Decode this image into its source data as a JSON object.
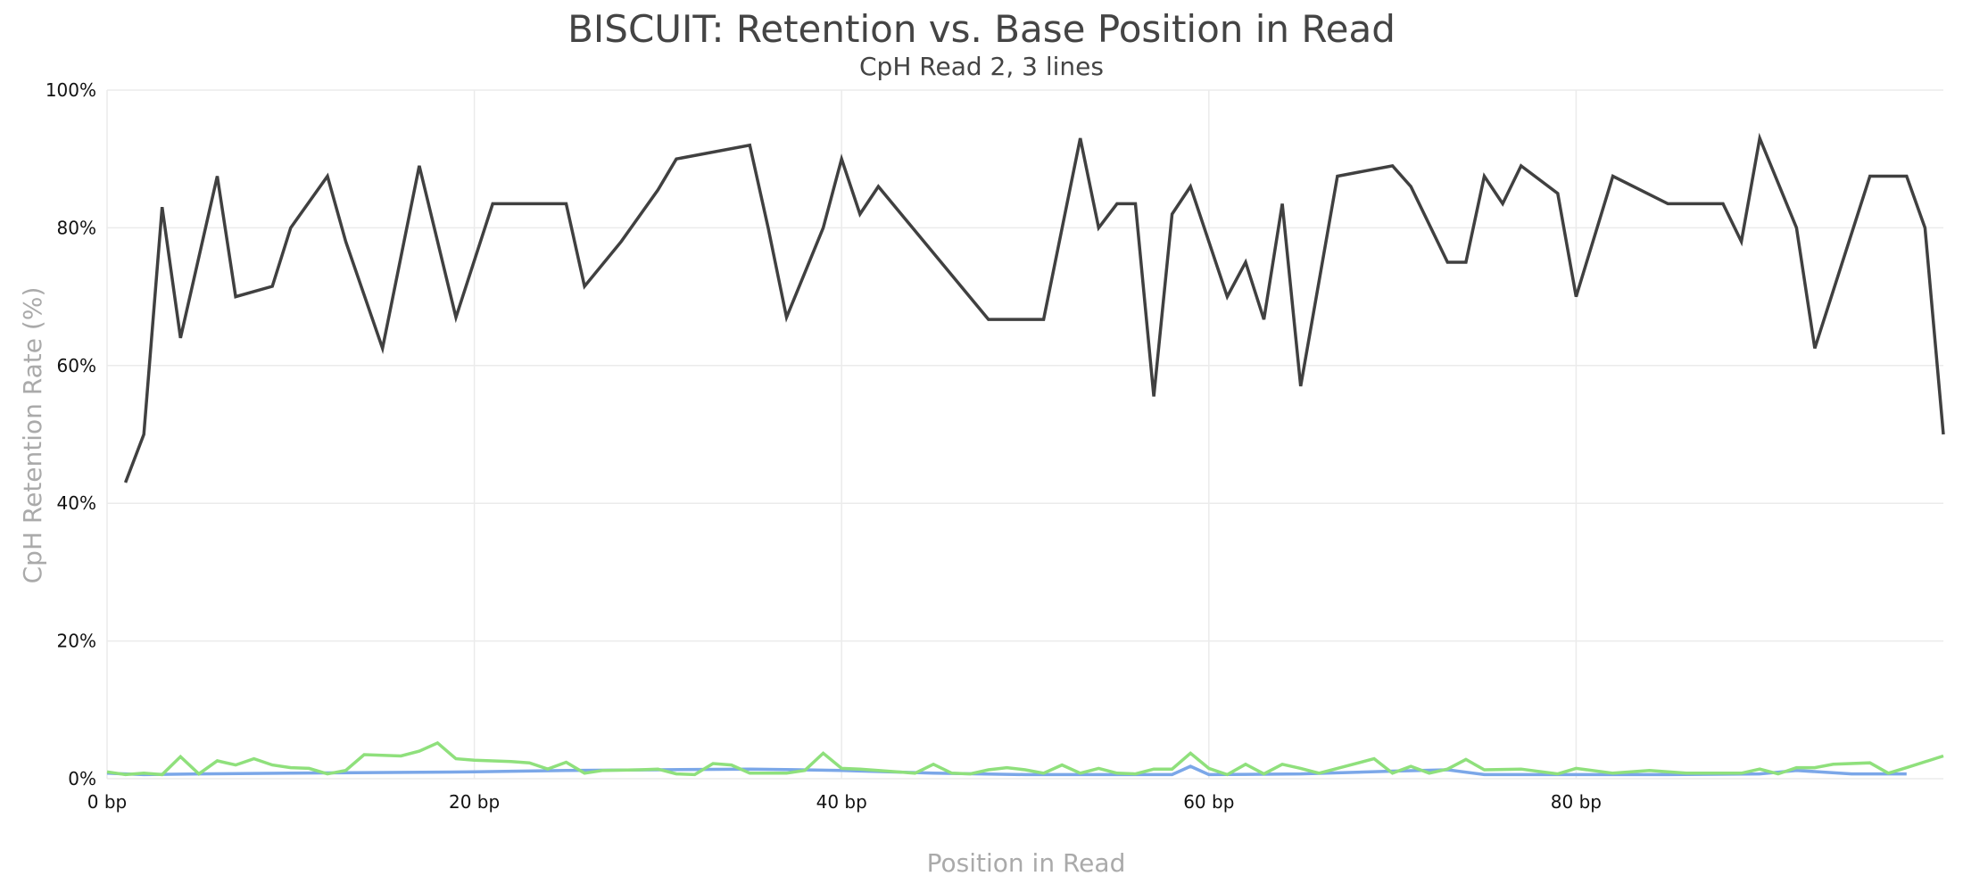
{
  "chart_data": {
    "type": "line",
    "title": "BISCUIT: Retention vs. Base Position in Read",
    "subtitle": "CpH Read 2, 3 lines",
    "xlabel": "Position in Read",
    "ylabel": "CpH Retention Rate (%)",
    "xlim": [
      0,
      100
    ],
    "ylim": [
      0,
      100
    ],
    "x_ticks": [
      {
        "value": 0,
        "label": "0 bp"
      },
      {
        "value": 20,
        "label": "20 bp"
      },
      {
        "value": 40,
        "label": "40 bp"
      },
      {
        "value": 60,
        "label": "60 bp"
      },
      {
        "value": 80,
        "label": "80 bp"
      }
    ],
    "y_ticks": [
      {
        "value": 0,
        "label": "0%"
      },
      {
        "value": 20,
        "label": "20%"
      },
      {
        "value": 40,
        "label": "40%"
      },
      {
        "value": 60,
        "label": "60%"
      },
      {
        "value": 80,
        "label": "80%"
      },
      {
        "value": 100,
        "label": "100%"
      }
    ],
    "grid": true,
    "legend": "none",
    "series": [
      {
        "color": "#404040",
        "points": [
          [
            1,
            43
          ],
          [
            2,
            50
          ],
          [
            3,
            83
          ],
          [
            4,
            64
          ],
          [
            6,
            87.5
          ],
          [
            7,
            70
          ],
          [
            9,
            71.5
          ],
          [
            10,
            80
          ],
          [
            12,
            87.5
          ],
          [
            13,
            78
          ],
          [
            15,
            62.5
          ],
          [
            17,
            89
          ],
          [
            19,
            67
          ],
          [
            21,
            83.5
          ],
          [
            25,
            83.5
          ],
          [
            26,
            71.5
          ],
          [
            28,
            78
          ],
          [
            30,
            85.5
          ],
          [
            31,
            90
          ],
          [
            35,
            92
          ],
          [
            36,
            80
          ],
          [
            37,
            67
          ],
          [
            39,
            80
          ],
          [
            40,
            90
          ],
          [
            41,
            82
          ],
          [
            42,
            86
          ],
          [
            48,
            66.7
          ],
          [
            51,
            66.7
          ],
          [
            53,
            93
          ],
          [
            54,
            80
          ],
          [
            55,
            83.5
          ],
          [
            56,
            83.5
          ],
          [
            57,
            55.5
          ],
          [
            58,
            82
          ],
          [
            59,
            86
          ],
          [
            61,
            70
          ],
          [
            62,
            75
          ],
          [
            63,
            66.7
          ],
          [
            64,
            83.5
          ],
          [
            65,
            57
          ],
          [
            67,
            87.5
          ],
          [
            70,
            89
          ],
          [
            71,
            86
          ],
          [
            73,
            75
          ],
          [
            74,
            75
          ],
          [
            75,
            87.5
          ],
          [
            76,
            83.5
          ],
          [
            77,
            89
          ],
          [
            79,
            85
          ],
          [
            80,
            70
          ],
          [
            82,
            87.5
          ],
          [
            85,
            83.5
          ],
          [
            88,
            83.5
          ],
          [
            89,
            78
          ],
          [
            90,
            93
          ],
          [
            92,
            80
          ],
          [
            93,
            62.5
          ],
          [
            96,
            87.5
          ],
          [
            98,
            87.5
          ],
          [
            99,
            80
          ],
          [
            100,
            50
          ]
        ]
      },
      {
        "color": "#7BA7E8",
        "points": [
          [
            0,
            0.8
          ],
          [
            2,
            0.6
          ],
          [
            5,
            0.7
          ],
          [
            10,
            0.8
          ],
          [
            20,
            1.0
          ],
          [
            25,
            1.2
          ],
          [
            30,
            1.3
          ],
          [
            35,
            1.4
          ],
          [
            40,
            1.2
          ],
          [
            45,
            0.8
          ],
          [
            50,
            0.6
          ],
          [
            55,
            0.6
          ],
          [
            58,
            0.6
          ],
          [
            59,
            1.8
          ],
          [
            60,
            0.6
          ],
          [
            65,
            0.7
          ],
          [
            70,
            1.1
          ],
          [
            73,
            1.3
          ],
          [
            75,
            0.6
          ],
          [
            80,
            0.6
          ],
          [
            85,
            0.6
          ],
          [
            90,
            0.7
          ],
          [
            92,
            1.2
          ],
          [
            95,
            0.7
          ],
          [
            98,
            0.7
          ]
        ]
      },
      {
        "color": "#8FE07C",
        "points": [
          [
            0,
            1.0
          ],
          [
            1,
            0.6
          ],
          [
            2,
            0.8
          ],
          [
            3,
            0.6
          ],
          [
            4,
            3.2
          ],
          [
            5,
            0.7
          ],
          [
            6,
            2.6
          ],
          [
            7,
            2.0
          ],
          [
            8,
            2.9
          ],
          [
            9,
            2.0
          ],
          [
            10,
            1.6
          ],
          [
            11,
            1.5
          ],
          [
            12,
            0.7
          ],
          [
            13,
            1.2
          ],
          [
            14,
            3.5
          ],
          [
            16,
            3.3
          ],
          [
            17,
            4.0
          ],
          [
            18,
            5.2
          ],
          [
            19,
            2.9
          ],
          [
            20,
            2.7
          ],
          [
            22,
            2.5
          ],
          [
            23,
            2.3
          ],
          [
            24,
            1.4
          ],
          [
            25,
            2.4
          ],
          [
            26,
            0.8
          ],
          [
            27,
            1.2
          ],
          [
            29,
            1.3
          ],
          [
            30,
            1.4
          ],
          [
            31,
            0.7
          ],
          [
            32,
            0.6
          ],
          [
            33,
            2.2
          ],
          [
            34,
            2.0
          ],
          [
            35,
            0.8
          ],
          [
            37,
            0.8
          ],
          [
            38,
            1.2
          ],
          [
            39,
            3.7
          ],
          [
            40,
            1.5
          ],
          [
            41,
            1.4
          ],
          [
            43,
            1.0
          ],
          [
            44,
            0.8
          ],
          [
            45,
            2.1
          ],
          [
            46,
            0.8
          ],
          [
            47,
            0.7
          ],
          [
            48,
            1.3
          ],
          [
            49,
            1.6
          ],
          [
            50,
            1.3
          ],
          [
            51,
            0.8
          ],
          [
            52,
            2.0
          ],
          [
            53,
            0.8
          ],
          [
            54,
            1.5
          ],
          [
            55,
            0.8
          ],
          [
            56,
            0.7
          ],
          [
            57,
            1.4
          ],
          [
            58,
            1.4
          ],
          [
            59,
            3.7
          ],
          [
            60,
            1.5
          ],
          [
            61,
            0.6
          ],
          [
            62,
            2.1
          ],
          [
            63,
            0.7
          ],
          [
            64,
            2.1
          ],
          [
            65,
            1.5
          ],
          [
            66,
            0.8
          ],
          [
            69,
            2.9
          ],
          [
            70,
            0.8
          ],
          [
            71,
            1.8
          ],
          [
            72,
            0.8
          ],
          [
            73,
            1.4
          ],
          [
            74,
            2.8
          ],
          [
            75,
            1.3
          ],
          [
            77,
            1.4
          ],
          [
            79,
            0.7
          ],
          [
            80,
            1.5
          ],
          [
            82,
            0.8
          ],
          [
            84,
            1.2
          ],
          [
            86,
            0.8
          ],
          [
            89,
            0.8
          ],
          [
            90,
            1.4
          ],
          [
            91,
            0.7
          ],
          [
            92,
            1.6
          ],
          [
            93,
            1.6
          ],
          [
            94,
            2.1
          ],
          [
            96,
            2.3
          ],
          [
            97,
            0.8
          ],
          [
            98,
            1.6
          ],
          [
            100,
            3.3
          ]
        ]
      }
    ]
  }
}
